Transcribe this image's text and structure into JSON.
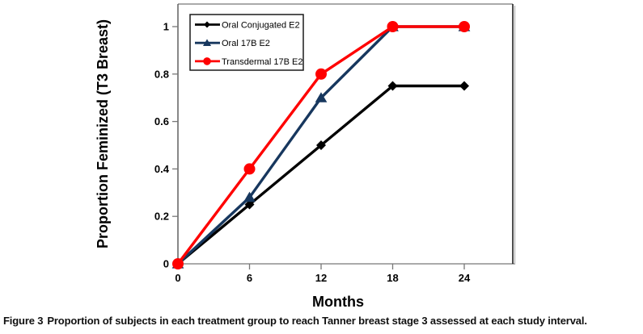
{
  "chart_data": {
    "type": "line",
    "title": "",
    "xlabel": "Months",
    "ylabel": "Proportion Feminized (T3 Breast)",
    "x": [
      0,
      6,
      12,
      18,
      24
    ],
    "xticks": [
      {
        "v": 0,
        "label": "0"
      },
      {
        "v": 6,
        "label": "6"
      },
      {
        "v": 12,
        "label": "12"
      },
      {
        "v": 18,
        "label": "18"
      },
      {
        "v": 24,
        "label": "24"
      }
    ],
    "yticks": [
      {
        "v": 0,
        "label": "0"
      },
      {
        "v": 0.2,
        "label": "0.2"
      },
      {
        "v": 0.4,
        "label": "0.4"
      },
      {
        "v": 0.6,
        "label": "0.6"
      },
      {
        "v": 0.8,
        "label": "0.8"
      },
      {
        "v": 1,
        "label": "1"
      }
    ],
    "xlim": [
      0,
      28
    ],
    "ylim": [
      0,
      1.1
    ],
    "grid": false,
    "legend_position": "top-left-inside",
    "series": [
      {
        "name": "Oral Conjugated E2",
        "color": "#000000",
        "marker": "diamond",
        "values": [
          0,
          0.25,
          0.5,
          0.75,
          0.75
        ]
      },
      {
        "name": "Oral 17B E2",
        "color": "#17375E",
        "marker": "triangle",
        "values": [
          0,
          0.28,
          0.7,
          1,
          1
        ]
      },
      {
        "name": "Transdermal 17B E2",
        "color": "#FF0000",
        "marker": "circle",
        "values": [
          0,
          0.4,
          0.8,
          1,
          1
        ]
      }
    ]
  },
  "caption": {
    "label": "Figure 3",
    "text": "Proportion of subjects in each treatment group to reach Tanner breast stage 3 assessed at each study interval."
  }
}
